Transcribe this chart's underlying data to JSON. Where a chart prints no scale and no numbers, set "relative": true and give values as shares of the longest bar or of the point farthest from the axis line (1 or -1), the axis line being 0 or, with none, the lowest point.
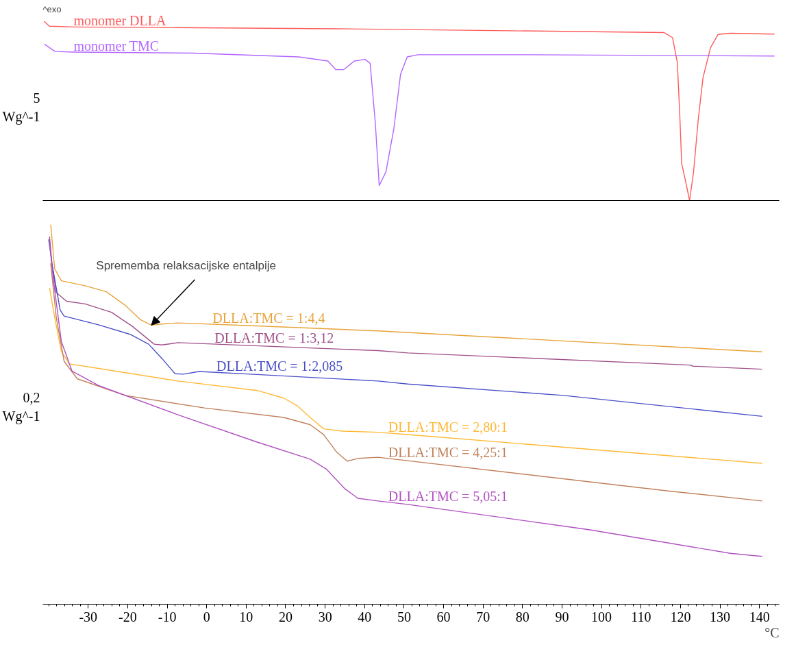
{
  "chart_data": [
    {
      "type": "line",
      "relative": true,
      "tick_labels": false,
      "ylabel": "5\nWg^-1",
      "annotations": [
        "^exo"
      ],
      "xlim": [
        -41.5,
        145
      ],
      "xticks": [
        -30,
        -20,
        -10,
        0,
        10,
        20,
        30,
        40,
        50,
        60,
        70,
        80,
        90,
        100,
        110,
        120,
        130,
        140
      ],
      "line_style": "solid",
      "marker": "none",
      "series": [
        {
          "name": "monomer DLLA",
          "color": "#ff5a5a",
          "x": [
            -41.2,
            -39.8,
            -33.3,
            32.9,
            115.8,
            118.0,
            119.2,
            119.8,
            120.3,
            121.3,
            122.3,
            123.3,
            124.5,
            125.7,
            127.6,
            129.5,
            132.5,
            143.8
          ],
          "values": [
            1.0,
            0.972,
            0.968,
            0.958,
            0.937,
            0.908,
            0.769,
            0.486,
            0.206,
            0.106,
            0,
            0.157,
            0.454,
            0.685,
            0.852,
            0.926,
            0.933,
            0.928
          ]
        },
        {
          "name": "monomer TMC",
          "color": "#b266ff",
          "x": [
            -41.1,
            -38.4,
            -33.7,
            -3.5,
            23.3,
            30.7,
            32.7,
            34.7,
            37.4,
            40.1,
            41.4,
            42.7,
            43.7,
            45.4,
            47.4,
            49.1,
            50.8,
            53.5,
            81.5,
            143.8
          ],
          "values": [
            0.872,
            0.831,
            0.828,
            0.822,
            0.801,
            0.778,
            0.73,
            0.73,
            0.778,
            0.787,
            0.765,
            0.436,
            0.083,
            0.16,
            0.4,
            0.704,
            0.801,
            0.813,
            0.813,
            0.806
          ]
        }
      ]
    },
    {
      "type": "line",
      "relative": true,
      "tick_labels": "x",
      "ylabel": "0,2\nWg^-1",
      "xlabel": "°C",
      "annotations": [
        {
          "text": "Sprememba relaksacijske entalpije",
          "x": -14.0,
          "y": 0.735
        }
      ],
      "xlim": [
        -41.5,
        145
      ],
      "xticks": [
        -30,
        -20,
        -10,
        0,
        10,
        20,
        30,
        40,
        50,
        60,
        70,
        80,
        90,
        100,
        110,
        120,
        130,
        140
      ],
      "line_style": "solid",
      "marker": "none",
      "series": [
        {
          "name": "DLLA:TMC = 1:4,4",
          "color": "#e8a33a",
          "x": [
            -39.5,
            -38.5,
            -36.8,
            -30.8,
            -25.4,
            -20.7,
            -16.7,
            -14.0,
            -11.3,
            -7.3,
            12.8,
            43.4,
            140.7
          ],
          "values": [
            1.0,
            0.884,
            0.852,
            0.839,
            0.823,
            0.788,
            0.749,
            0.735,
            0.738,
            0.741,
            0.733,
            0.72,
            0.665
          ]
        },
        {
          "name": "DLLA:TMC = 1:3,12",
          "color": "#a0508a",
          "x": [
            -39.8,
            -39.2,
            -38.1,
            -35.5,
            -30.8,
            -24.1,
            -18.7,
            -13.3,
            -11.3,
            -7.3,
            43.4,
            50.9,
            122.5,
            123.2,
            140.7
          ],
          "values": [
            0.968,
            0.898,
            0.821,
            0.798,
            0.791,
            0.769,
            0.731,
            0.685,
            0.683,
            0.689,
            0.668,
            0.662,
            0.63,
            0.627,
            0.619
          ]
        },
        {
          "name": "DLLA:TMC = 1:2,085",
          "color": "#4a4fc8",
          "x": [
            -40.0,
            -39.2,
            -37.1,
            -36.1,
            -27.4,
            -19.4,
            -14.7,
            -11.3,
            -8.0,
            -5.9,
            -1.9,
            12.8,
            43.4,
            50.9,
            90.3,
            140.7
          ],
          "values": [
            0.961,
            0.898,
            0.775,
            0.759,
            0.736,
            0.711,
            0.685,
            0.647,
            0.607,
            0.606,
            0.613,
            0.605,
            0.588,
            0.58,
            0.55,
            0.495
          ]
        },
        {
          "name": "DLLA:TMC = 2,80:1",
          "color": "#ffb833",
          "x": [
            -39.8,
            -38.5,
            -36.8,
            -34.8,
            -27.4,
            -7.3,
            12.8,
            19.5,
            22.9,
            26.2,
            29.6,
            34.3,
            43.4,
            50.9,
            140.7
          ],
          "values": [
            0.833,
            0.756,
            0.666,
            0.633,
            0.621,
            0.588,
            0.563,
            0.543,
            0.523,
            0.492,
            0.462,
            0.456,
            0.453,
            0.447,
            0.371
          ]
        },
        {
          "name": "DLLA:TMC = 4,25:1",
          "color": "#c0805a",
          "x": [
            -39.5,
            -38.1,
            -36.1,
            -32.8,
            -20.7,
            -0.6,
            19.5,
            26.2,
            29.6,
            32.9,
            35.6,
            38.3,
            43.4,
            117.2,
            140.7
          ],
          "values": [
            0.898,
            0.756,
            0.64,
            0.594,
            0.55,
            0.517,
            0.492,
            0.473,
            0.447,
            0.401,
            0.377,
            0.384,
            0.387,
            0.298,
            0.272
          ]
        },
        {
          "name": "DLLA:TMC = 5,05:1",
          "color": "#b050c0",
          "x": [
            -39.8,
            -38.8,
            -36.8,
            -34.1,
            -27.4,
            -7.3,
            12.8,
            26.2,
            30.3,
            34.9,
            38.3,
            43.4,
            50.9,
            97.1,
            132.6,
            140.7
          ],
          "values": [
            0.955,
            0.852,
            0.692,
            0.614,
            0.576,
            0.499,
            0.427,
            0.382,
            0.356,
            0.305,
            0.279,
            0.272,
            0.263,
            0.196,
            0.134,
            0.126
          ]
        }
      ]
    }
  ]
}
